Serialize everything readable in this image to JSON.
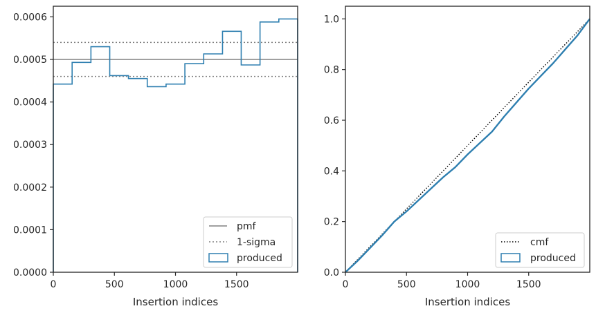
{
  "chart_data": [
    {
      "type": "line",
      "xlabel": "Insertion indices",
      "ylabel": "",
      "xlim": [
        0,
        2000
      ],
      "ylim": [
        0,
        0.000625
      ],
      "xticks": [
        0,
        500,
        1000,
        1500
      ],
      "xtick_labels": [
        "0",
        "500",
        "1000",
        "1500"
      ],
      "yticks": [
        0,
        0.0001,
        0.0002,
        0.0003,
        0.0004,
        0.0005,
        0.0006
      ],
      "ytick_labels": [
        "0.0000",
        "0.0001",
        "0.0002",
        "0.0003",
        "0.0004",
        "0.0005",
        "0.0006"
      ],
      "grid": false,
      "legend_position": "lower-right",
      "pmf": 0.0005,
      "sigma_upper": 0.00054,
      "sigma_lower": 0.00046,
      "histogram": {
        "bin_edges": [
          0,
          154,
          308,
          462,
          615,
          769,
          923,
          1077,
          1231,
          1385,
          1538,
          1692,
          1846,
          2000
        ],
        "values": [
          0.000442,
          0.000493,
          0.00053,
          0.000462,
          0.000455,
          0.000436,
          0.000442,
          0.00049,
          0.000513,
          0.000566,
          0.000487,
          0.000588,
          0.000595
        ]
      },
      "legend": [
        "pmf",
        "1-sigma",
        "produced"
      ],
      "colors": {
        "pmf": "#808080",
        "sigma": "#808080",
        "produced": "#2e7fb0"
      }
    },
    {
      "type": "line",
      "xlabel": "Insertion indices",
      "ylabel": "",
      "xlim": [
        0,
        2000
      ],
      "ylim": [
        0,
        1.05
      ],
      "xticks": [
        0,
        500,
        1000,
        1500
      ],
      "xtick_labels": [
        "0",
        "500",
        "1000",
        "1500"
      ],
      "yticks": [
        0,
        0.2,
        0.4,
        0.6,
        0.8,
        1.0
      ],
      "ytick_labels": [
        "0.0",
        "0.2",
        "0.4",
        "0.6",
        "0.8",
        "1.0"
      ],
      "grid": false,
      "legend_position": "lower-right",
      "cmf": {
        "x": [
          0,
          2000
        ],
        "y": [
          0,
          1.0
        ]
      },
      "produced": {
        "x": [
          0,
          100,
          200,
          300,
          400,
          500,
          600,
          700,
          800,
          900,
          1000,
          1100,
          1200,
          1300,
          1400,
          1500,
          1600,
          1700,
          1800,
          1900,
          2000
        ],
        "y": [
          0,
          0.045,
          0.095,
          0.145,
          0.2,
          0.24,
          0.285,
          0.33,
          0.375,
          0.415,
          0.465,
          0.51,
          0.555,
          0.615,
          0.67,
          0.725,
          0.775,
          0.825,
          0.88,
          0.935,
          1.0
        ]
      },
      "legend": [
        "cmf",
        "produced"
      ],
      "colors": {
        "cmf": "#000000",
        "produced": "#2e7fb0"
      }
    }
  ]
}
